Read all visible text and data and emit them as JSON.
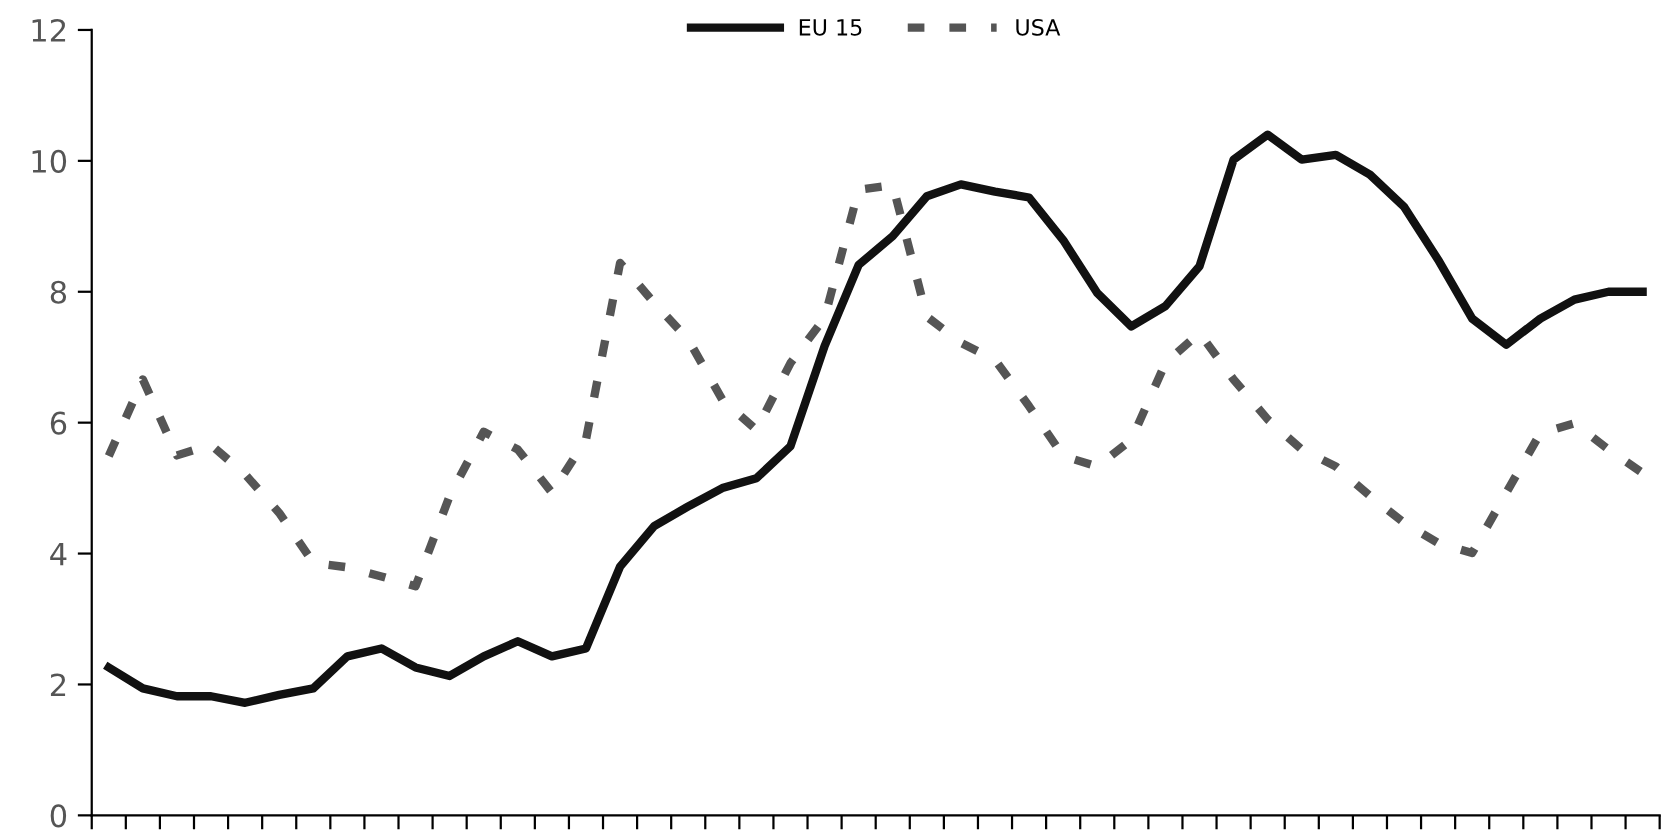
{
  "chart_data": {
    "type": "line",
    "categories": [
      null,
      null,
      null,
      null,
      null,
      null,
      null,
      null,
      null,
      null,
      null,
      null,
      null,
      null,
      null,
      null,
      null,
      null,
      null,
      null,
      null,
      null,
      null,
      null,
      null,
      null,
      null,
      null,
      null,
      null,
      null,
      null,
      null,
      null,
      null,
      null,
      null,
      null,
      null,
      null,
      null,
      null,
      null,
      null,
      null,
      null
    ],
    "series": [
      {
        "name": "EU 15",
        "color": "#111111",
        "line_style": "solid",
        "values": [
          2.26,
          1.94,
          1.82,
          1.82,
          1.72,
          1.84,
          1.94,
          2.43,
          2.55,
          2.26,
          2.13,
          2.43,
          2.66,
          2.43,
          2.55,
          3.8,
          4.42,
          4.72,
          5.0,
          5.15,
          5.64,
          7.17,
          8.41,
          8.85,
          9.46,
          9.64,
          9.53,
          9.44,
          8.79,
          7.98,
          7.47,
          7.78,
          8.39,
          10.02,
          10.4,
          10.02,
          10.09,
          9.79,
          9.3,
          8.49,
          7.59,
          7.19,
          7.59,
          7.88,
          8.0,
          8.0
        ]
      },
      {
        "name": "USA",
        "color": "#555555",
        "line_style": "dashed",
        "values": [
          5.49,
          6.66,
          5.5,
          5.66,
          5.21,
          4.62,
          3.86,
          3.79,
          3.65,
          3.5,
          4.88,
          5.86,
          5.59,
          4.93,
          5.74,
          8.44,
          7.83,
          7.27,
          6.35,
          5.89,
          6.91,
          7.6,
          9.56,
          9.63,
          7.62,
          7.22,
          6.96,
          6.25,
          5.49,
          5.33,
          5.74,
          6.91,
          7.37,
          6.66,
          6.05,
          5.59,
          5.33,
          4.88,
          4.47,
          4.16,
          4.01,
          4.93,
          5.84,
          5.99,
          5.59,
          5.23
        ]
      }
    ],
    "ylim": [
      0,
      12
    ],
    "yticks": [
      0,
      2,
      4,
      6,
      8,
      10,
      12
    ],
    "grid": false,
    "legend": "top",
    "marker": "none"
  }
}
